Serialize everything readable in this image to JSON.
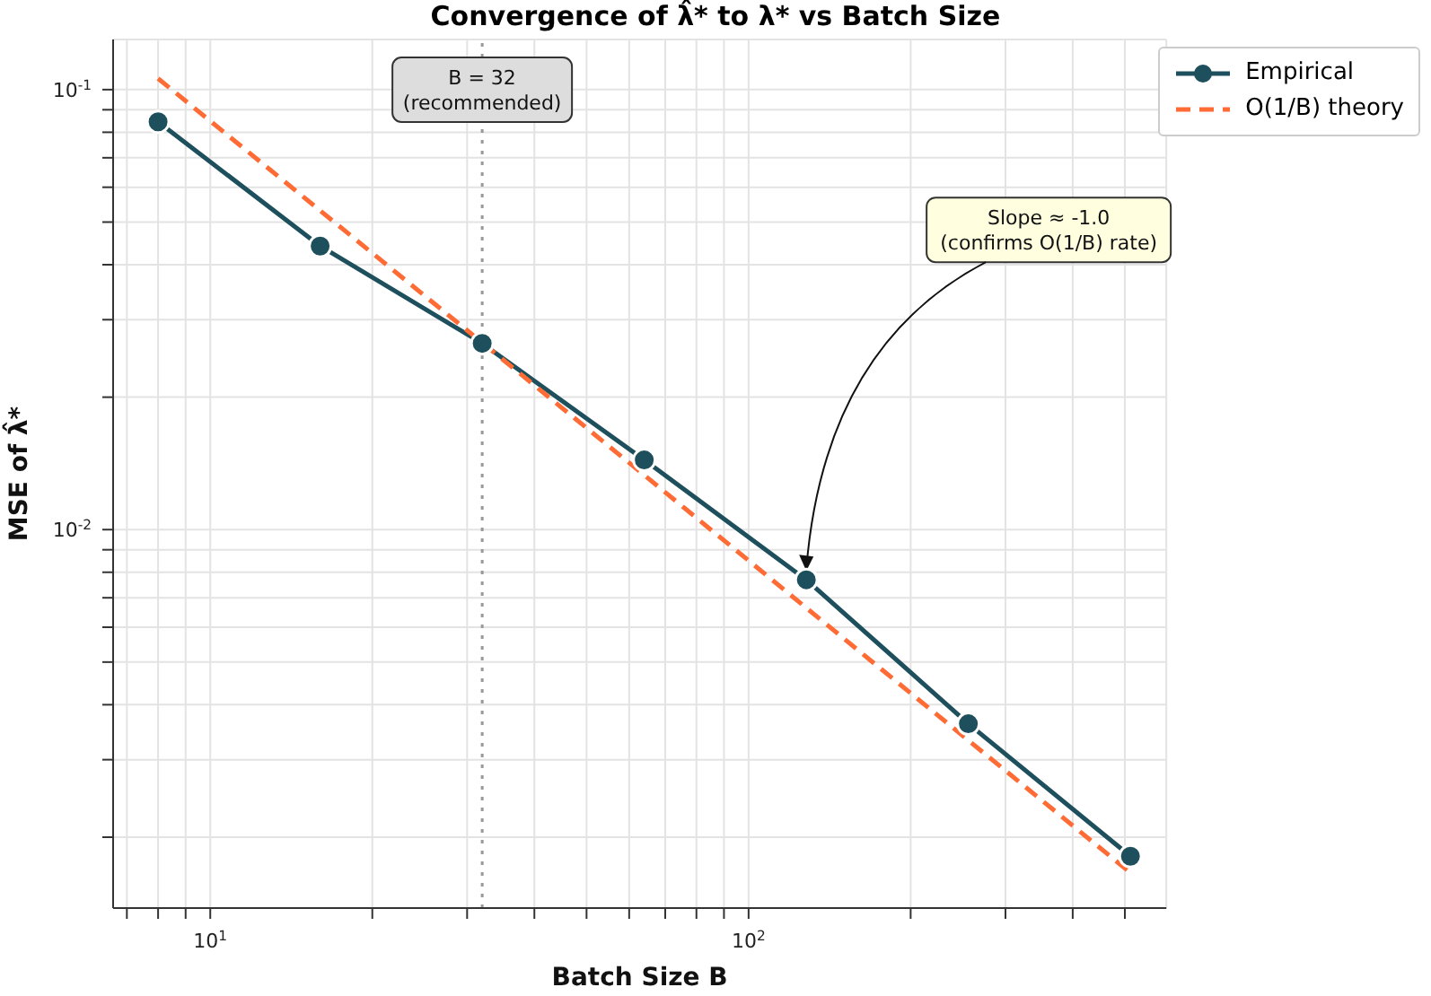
{
  "chart_data": {
    "type": "line",
    "title": "Convergence of λ̂* to λ* vs Batch Size",
    "xlabel": "Batch Size B",
    "ylabel": "MSE of λ̂*",
    "x": [
      8,
      16,
      32,
      64,
      128,
      256,
      512
    ],
    "series": [
      {
        "name": "Empirical",
        "color": "#1d4f5c",
        "values": [
          0.0845,
          0.0441,
          0.0265,
          0.0144,
          0.00769,
          0.00362,
          0.00181
        ],
        "marker": "circle",
        "line_style": "solid"
      },
      {
        "name": "O(1/B) theory",
        "color": "#ff6b35",
        "values": [
          0.106,
          0.0531,
          0.0266,
          0.0133,
          0.00664,
          0.00332,
          0.00166
        ],
        "marker": "none",
        "line_style": "dashed"
      }
    ],
    "log": "xy",
    "xlim": [
      6.6,
      597
    ],
    "ylim": [
      0.00138,
      0.13
    ],
    "xticks": [
      {
        "value": 7,
        "label": null
      },
      {
        "value": 8,
        "label": null
      },
      {
        "value": 9,
        "label": null
      },
      {
        "value": 10,
        "label": "10$^{1}$"
      },
      {
        "value": 20,
        "label": null
      },
      {
        "value": 30,
        "label": null
      },
      {
        "value": 40,
        "label": null
      },
      {
        "value": 50,
        "label": null
      },
      {
        "value": 60,
        "label": null
      },
      {
        "value": 70,
        "label": null
      },
      {
        "value": 80,
        "label": null
      },
      {
        "value": 90,
        "label": null
      },
      {
        "value": 100,
        "label": "10$^{2}$"
      },
      {
        "value": 200,
        "label": null
      },
      {
        "value": 300,
        "label": null
      },
      {
        "value": 400,
        "label": null
      },
      {
        "value": 500,
        "label": null
      }
    ],
    "yticks": [
      {
        "value": 0.002,
        "label": null
      },
      {
        "value": 0.003,
        "label": null
      },
      {
        "value": 0.004,
        "label": null
      },
      {
        "value": 0.005,
        "label": null
      },
      {
        "value": 0.006,
        "label": null
      },
      {
        "value": 0.007,
        "label": null
      },
      {
        "value": 0.008,
        "label": null
      },
      {
        "value": 0.009,
        "label": null
      },
      {
        "value": 0.01,
        "label": "10$^{-2}$"
      },
      {
        "value": 0.02,
        "label": null
      },
      {
        "value": 0.03,
        "label": null
      },
      {
        "value": 0.04,
        "label": null
      },
      {
        "value": 0.05,
        "label": null
      },
      {
        "value": 0.06,
        "label": null
      },
      {
        "value": 0.07,
        "label": null
      },
      {
        "value": 0.08,
        "label": null
      },
      {
        "value": 0.09,
        "label": null
      },
      {
        "value": 0.1,
        "label": "10$^{-1}$"
      }
    ],
    "grid": true,
    "legend": "top right",
    "ref_lines": [
      {
        "axis": "x",
        "value": 32,
        "label": "B = 32\n(recommended)",
        "color": "#999999",
        "line_style": "dotted"
      }
    ],
    "annotations": [
      {
        "text": "Slope ≈ -1.0\n(confirms O(1/B) rate)",
        "x": 128,
        "y": 0.00769
      }
    ]
  }
}
